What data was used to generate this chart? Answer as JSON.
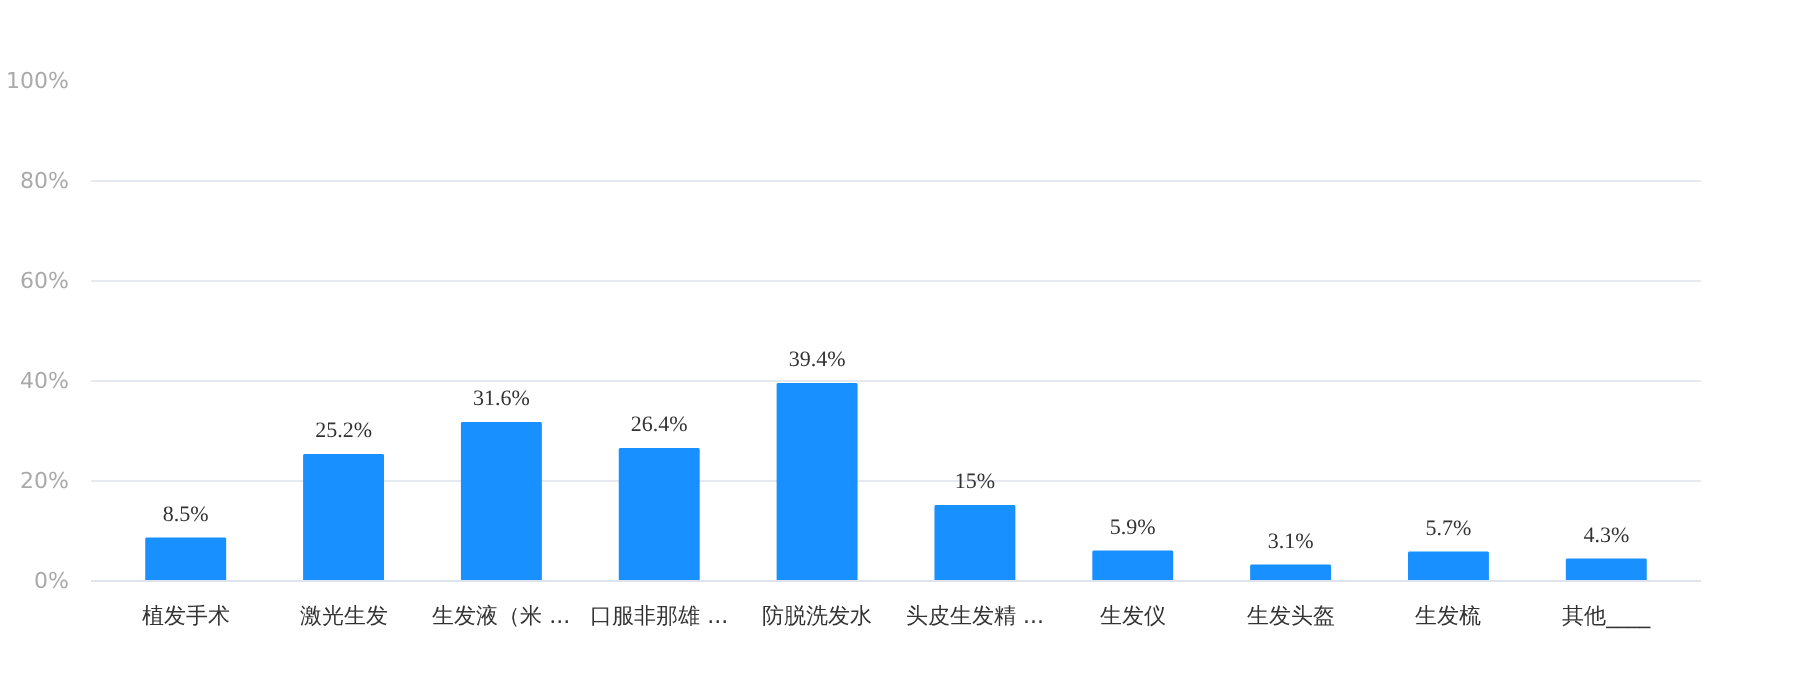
{
  "chart_data": {
    "type": "bar",
    "categories": [
      "植发手术",
      "激光生发",
      "生发液（米 ...",
      "口服非那雄 ...",
      "防脱洗发水",
      "头皮生发精 ...",
      "生发仪",
      "生发头盔",
      "生发梳",
      "其他____"
    ],
    "values": [
      8.5,
      25.2,
      31.6,
      26.4,
      39.4,
      15,
      5.9,
      3.1,
      5.7,
      4.3
    ],
    "value_labels": [
      "8.5%",
      "25.2%",
      "31.6%",
      "26.4%",
      "39.4%",
      "15%",
      "5.9%",
      "3.1%",
      "5.7%",
      "4.3%"
    ],
    "color": "#1890ff",
    "ylim": [
      0,
      100
    ],
    "yticks": [
      {
        "value": 0,
        "label": "0%"
      },
      {
        "value": 20,
        "label": "20%"
      },
      {
        "value": 40,
        "label": "40%"
      },
      {
        "value": 60,
        "label": "60%"
      },
      {
        "value": 80,
        "label": "80%"
      },
      {
        "value": 100,
        "label": "100%"
      }
    ],
    "grid": "y"
  }
}
